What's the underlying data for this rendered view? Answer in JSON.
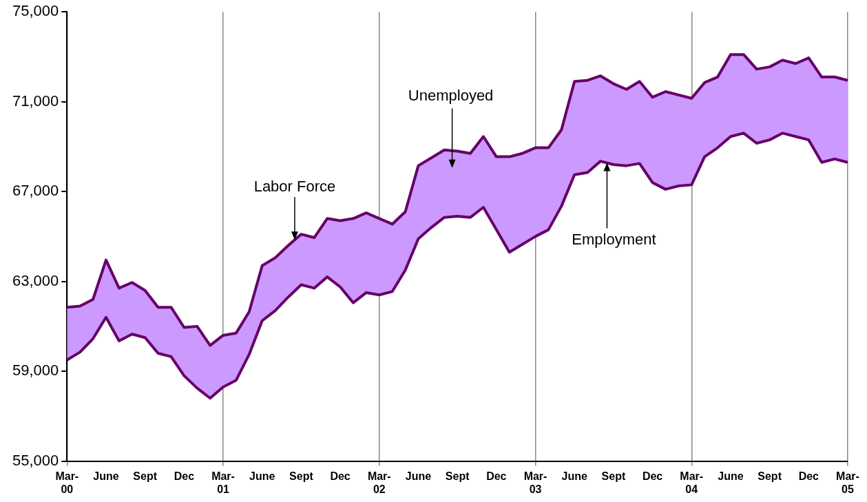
{
  "chart_data": {
    "type": "area",
    "categories": [
      "Mar-00",
      null,
      null,
      "June",
      null,
      null,
      "Sept",
      null,
      null,
      "Dec",
      null,
      null,
      "Mar-01",
      null,
      null,
      "June",
      null,
      null,
      "Sept",
      null,
      null,
      "Dec",
      null,
      null,
      "Mar-02",
      null,
      null,
      "June",
      null,
      null,
      "Sept",
      null,
      null,
      "Dec",
      null,
      null,
      "Mar-03",
      null,
      null,
      "June",
      null,
      null,
      "Sept",
      null,
      null,
      "Dec",
      null,
      null,
      "Mar-04",
      null,
      null,
      "June",
      null,
      null,
      "Sept",
      null,
      null,
      "Dec",
      null,
      null,
      "Mar-05"
    ],
    "series": [
      {
        "name": "Employment",
        "type": "line",
        "color": "#660066",
        "values": [
          59500,
          59850,
          60450,
          61400,
          60350,
          60650,
          60500,
          59800,
          59650,
          58800,
          58250,
          57800,
          58300,
          58600,
          59750,
          61250,
          61700,
          62300,
          62850,
          62700,
          63200,
          62750,
          62050,
          62500,
          62400,
          62550,
          63500,
          64900,
          65400,
          65850,
          65900,
          65850,
          66300,
          65300,
          64300,
          64650,
          65000,
          65300,
          66350,
          67750,
          67850,
          68350,
          68200,
          68150,
          68250,
          67400,
          67100,
          67250,
          67300,
          68550,
          68950,
          69450,
          69600,
          69150,
          69300,
          69600,
          69450,
          69300,
          68300,
          68450,
          68300
        ]
      },
      {
        "name": "Labor Force",
        "color": "#cc99ff",
        "values": [
          61850,
          61900,
          62200,
          63950,
          62700,
          62950,
          62600,
          61850,
          61850,
          60950,
          61000,
          60150,
          60600,
          60700,
          61650,
          63700,
          64050,
          64600,
          65100,
          64950,
          65800,
          65700,
          65800,
          66050,
          65800,
          65550,
          66100,
          68150,
          68500,
          68850,
          68800,
          68700,
          69450,
          68550,
          68550,
          68700,
          68950,
          68950,
          69750,
          71900,
          71950,
          72150,
          71800,
          71550,
          71900,
          71200,
          71450,
          71300,
          71150,
          71850,
          72100,
          73100,
          73100,
          72450,
          72550,
          72850,
          72700,
          72950,
          72100,
          72100,
          71950
        ]
      }
    ],
    "ylim": [
      55000,
      75000
    ],
    "yticks": [
      {
        "value": 55000,
        "label": "55,000"
      },
      {
        "value": 59000,
        "label": "59,000"
      },
      {
        "value": 63000,
        "label": "63,000"
      },
      {
        "value": 67000,
        "label": "67,000"
      },
      {
        "value": 71000,
        "label": "71,000"
      },
      {
        "value": 75000,
        "label": "75,000"
      }
    ],
    "grid": "x",
    "annotations": [
      "Unemployed"
    ]
  }
}
